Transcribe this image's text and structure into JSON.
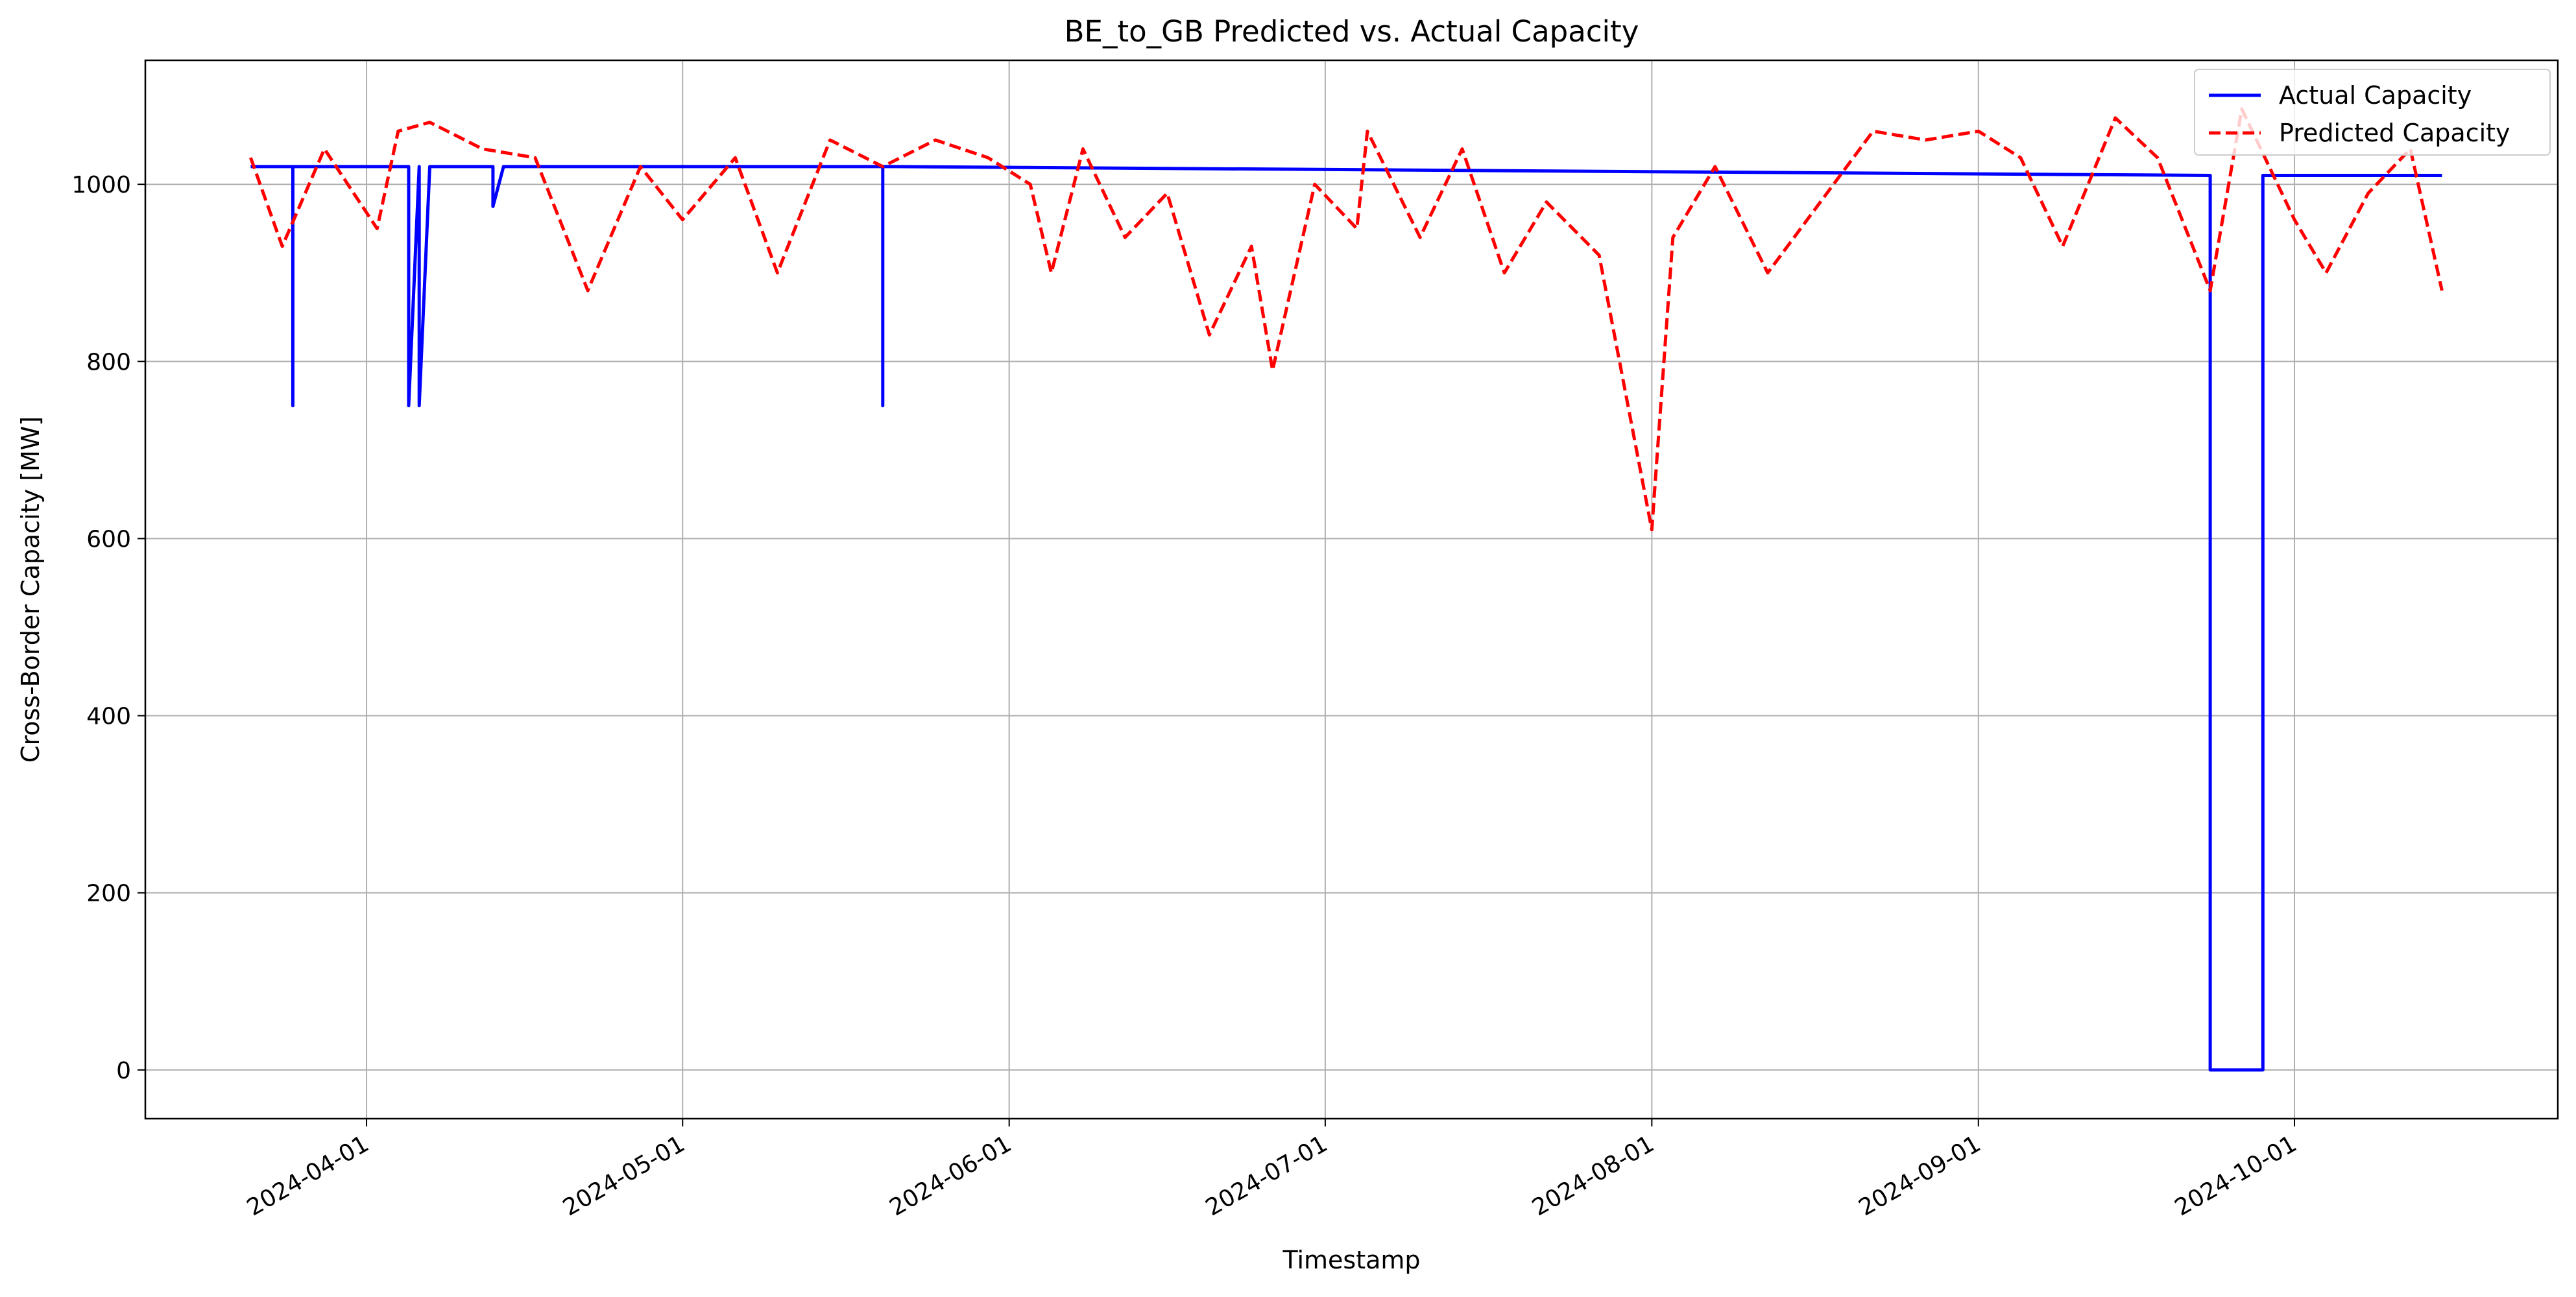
{
  "chart_data": {
    "type": "line",
    "title": "BE_to_GB Predicted vs. Actual Capacity",
    "xlabel": "Timestamp",
    "ylabel": "Cross-Border Capacity [MW]",
    "x_type": "date",
    "xlim": [
      "2024-03-11",
      "2024-10-26"
    ],
    "ylim": [
      -55,
      1140
    ],
    "x_ticks": [
      "2024-04-01",
      "2024-05-01",
      "2024-06-01",
      "2024-07-01",
      "2024-08-01",
      "2024-09-01",
      "2024-10-01"
    ],
    "y_ticks": [
      0,
      200,
      400,
      600,
      800,
      1000
    ],
    "grid": true,
    "legend_position": "top-right",
    "series": [
      {
        "name": "Actual Capacity",
        "color": "#0000ff",
        "style": "solid",
        "x": [
          "2024-03-21",
          "2024-03-25",
          "2024-03-25",
          "2024-03-25",
          "2024-03-26",
          "2024-04-05",
          "2024-04-05",
          "2024-04-06",
          "2024-04-06",
          "2024-04-06",
          "2024-04-07",
          "2024-04-13",
          "2024-04-13",
          "2024-04-14",
          "2024-05-20",
          "2024-05-20",
          "2024-05-20",
          "2024-05-21",
          "2024-09-23",
          "2024-09-23",
          "2024-09-28",
          "2024-09-28",
          "2024-10-15"
        ],
        "y": [
          1020,
          1020,
          750,
          1020,
          1020,
          1020,
          750,
          1020,
          1020,
          750,
          1020,
          1020,
          975,
          1020,
          1020,
          750,
          1020,
          1020,
          1010,
          0,
          0,
          1010,
          1010
        ]
      },
      {
        "name": "Predicted Capacity",
        "color": "#ff0000",
        "style": "dashed",
        "x": [
          "2024-03-21",
          "2024-03-24",
          "2024-03-28",
          "2024-04-02",
          "2024-04-04",
          "2024-04-07",
          "2024-04-12",
          "2024-04-17",
          "2024-04-22",
          "2024-04-27",
          "2024-05-01",
          "2024-05-06",
          "2024-05-10",
          "2024-05-15",
          "2024-05-20",
          "2024-05-25",
          "2024-05-30",
          "2024-06-03",
          "2024-06-05",
          "2024-06-08",
          "2024-06-12",
          "2024-06-16",
          "2024-06-20",
          "2024-06-24",
          "2024-06-26",
          "2024-06-30",
          "2024-07-04",
          "2024-07-05",
          "2024-07-10",
          "2024-07-14",
          "2024-07-18",
          "2024-07-22",
          "2024-07-27",
          "2024-08-01",
          "2024-08-03",
          "2024-08-07",
          "2024-08-12",
          "2024-08-17",
          "2024-08-22",
          "2024-08-27",
          "2024-09-01",
          "2024-09-05",
          "2024-09-09",
          "2024-09-14",
          "2024-09-18",
          "2024-09-23",
          "2024-09-26",
          "2024-10-01",
          "2024-10-04",
          "2024-10-08",
          "2024-10-12",
          "2024-10-15"
        ],
        "y": [
          1030,
          930,
          1040,
          950,
          1060,
          1070,
          1040,
          1030,
          880,
          1020,
          960,
          1030,
          900,
          1050,
          1020,
          1050,
          1030,
          1000,
          900,
          1040,
          940,
          990,
          830,
          930,
          790,
          1000,
          950,
          1060,
          940,
          1040,
          900,
          980,
          920,
          610,
          940,
          1020,
          900,
          980,
          1060,
          1050,
          1060,
          1030,
          930,
          1075,
          1030,
          880,
          1085,
          960,
          900,
          990,
          1040,
          880
        ]
      }
    ]
  }
}
